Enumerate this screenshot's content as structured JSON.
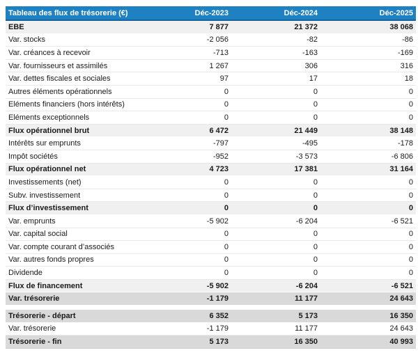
{
  "colors": {
    "header_bg": "#1e82c2",
    "header_border": "#15629c",
    "subtotal_bg": "#f0f0f0",
    "strong_bg": "#d9d9d9",
    "row_line": "#e9e9e9",
    "text": "#1a1a1a"
  },
  "table": {
    "title": "Tableau des flux de trésorerie (€)",
    "columns": [
      "Déc-2023",
      "Déc-2024",
      "Déc-2025"
    ],
    "rows": [
      {
        "label": "EBE",
        "values": [
          "7 877",
          "21 372",
          "38 068"
        ],
        "style": "subtotal"
      },
      {
        "label": "Var. stocks",
        "values": [
          "-2 056",
          "-82",
          "-86"
        ],
        "style": "normal"
      },
      {
        "label": "Var. créances à recevoir",
        "values": [
          "-713",
          "-163",
          "-169"
        ],
        "style": "normal"
      },
      {
        "label": "Var. fournisseurs et assimilés",
        "values": [
          "1 267",
          "306",
          "316"
        ],
        "style": "normal"
      },
      {
        "label": "Var. dettes fiscales et sociales",
        "values": [
          "97",
          "17",
          "18"
        ],
        "style": "normal"
      },
      {
        "label": "Autres éléments opérationnels",
        "values": [
          "0",
          "0",
          "0"
        ],
        "style": "normal"
      },
      {
        "label": "Eléments financiers (hors intérêts)",
        "values": [
          "0",
          "0",
          "0"
        ],
        "style": "normal"
      },
      {
        "label": "Eléments exceptionnels",
        "values": [
          "0",
          "0",
          "0"
        ],
        "style": "normal"
      },
      {
        "label": "Flux opérationnel brut",
        "values": [
          "6 472",
          "21 449",
          "38 148"
        ],
        "style": "subtotal"
      },
      {
        "label": "Intérêts sur emprunts",
        "values": [
          "-797",
          "-495",
          "-178"
        ],
        "style": "normal"
      },
      {
        "label": "Impôt sociétés",
        "values": [
          "-952",
          "-3 573",
          "-6 806"
        ],
        "style": "normal"
      },
      {
        "label": "Flux opérationnel net",
        "values": [
          "4 723",
          "17 381",
          "31 164"
        ],
        "style": "subtotal"
      },
      {
        "label": "Investissements (net)",
        "values": [
          "0",
          "0",
          "0"
        ],
        "style": "normal"
      },
      {
        "label": "Subv. investissement",
        "values": [
          "0",
          "0",
          "0"
        ],
        "style": "normal"
      },
      {
        "label": "Flux d’investissement",
        "values": [
          "0",
          "0",
          "0"
        ],
        "style": "subtotal"
      },
      {
        "label": "Var. emprunts",
        "values": [
          "-5 902",
          "-6 204",
          "-6 521"
        ],
        "style": "normal"
      },
      {
        "label": "Var. capital social",
        "values": [
          "0",
          "0",
          "0"
        ],
        "style": "normal"
      },
      {
        "label": "Var. compte courant d’associés",
        "values": [
          "0",
          "0",
          "0"
        ],
        "style": "normal"
      },
      {
        "label": "Var. autres fonds propres",
        "values": [
          "0",
          "0",
          "0"
        ],
        "style": "normal"
      },
      {
        "label": "Dividende",
        "values": [
          "0",
          "0",
          "0"
        ],
        "style": "normal"
      },
      {
        "label": "Flux de financement",
        "values": [
          "-5 902",
          "-6 204",
          "-6 521"
        ],
        "style": "subtotal"
      },
      {
        "label": "Var. trésorerie",
        "values": [
          "-1 179",
          "11 177",
          "24 643"
        ],
        "style": "strong"
      },
      {
        "label": "",
        "values": [],
        "style": "gap"
      },
      {
        "label": "Trésorerie - départ",
        "values": [
          "6 352",
          "5 173",
          "16 350"
        ],
        "style": "strong"
      },
      {
        "label": "Var. trésorerie",
        "values": [
          "-1 179",
          "11 177",
          "24 643"
        ],
        "style": "normal"
      },
      {
        "label": "Trésorerie - fin",
        "values": [
          "5 173",
          "16 350",
          "40 993"
        ],
        "style": "strong"
      }
    ]
  }
}
